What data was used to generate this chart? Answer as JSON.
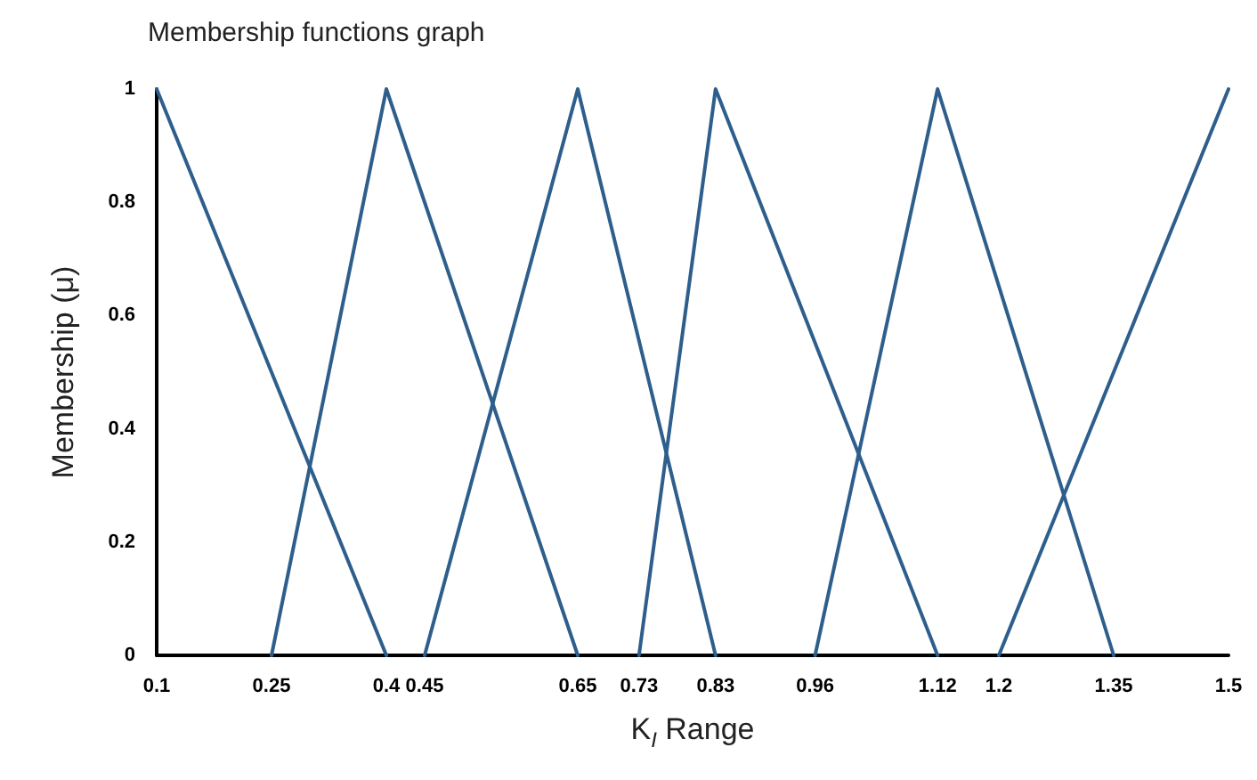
{
  "chart_data": {
    "type": "line",
    "title": "Membership functions graph",
    "xlabel": "K$_{I}$ Range",
    "ylabel": "Membership (μ)",
    "xlim": [
      0.1,
      1.5
    ],
    "xticks": [
      0.1,
      0.25,
      0.4,
      0.45,
      0.65,
      0.73,
      0.83,
      0.96,
      1.12,
      1.2,
      1.35,
      1.5
    ],
    "ylim": [
      0,
      1
    ],
    "yticks": [
      0,
      0.2,
      0.4,
      0.6,
      0.8,
      1
    ],
    "grid": false,
    "marker": "none",
    "line_style": "solid",
    "series": [
      {
        "color": "#2e5f8c",
        "x": [
          0.1,
          0.4
        ],
        "values": [
          1,
          0
        ]
      },
      {
        "color": "#2e5f8c",
        "x": [
          0.25,
          0.4,
          0.65
        ],
        "values": [
          0,
          1,
          0
        ]
      },
      {
        "color": "#2e5f8c",
        "x": [
          0.45,
          0.65,
          0.83
        ],
        "values": [
          0,
          1,
          0
        ]
      },
      {
        "color": "#2e5f8c",
        "x": [
          0.73,
          0.83,
          1.12
        ],
        "values": [
          0,
          1,
          0
        ]
      },
      {
        "color": "#2e5f8c",
        "x": [
          0.96,
          1.12,
          1.35
        ],
        "values": [
          0,
          1,
          0
        ]
      },
      {
        "color": "#2e5f8c",
        "x": [
          1.2,
          1.5
        ],
        "values": [
          0,
          1
        ]
      }
    ]
  }
}
